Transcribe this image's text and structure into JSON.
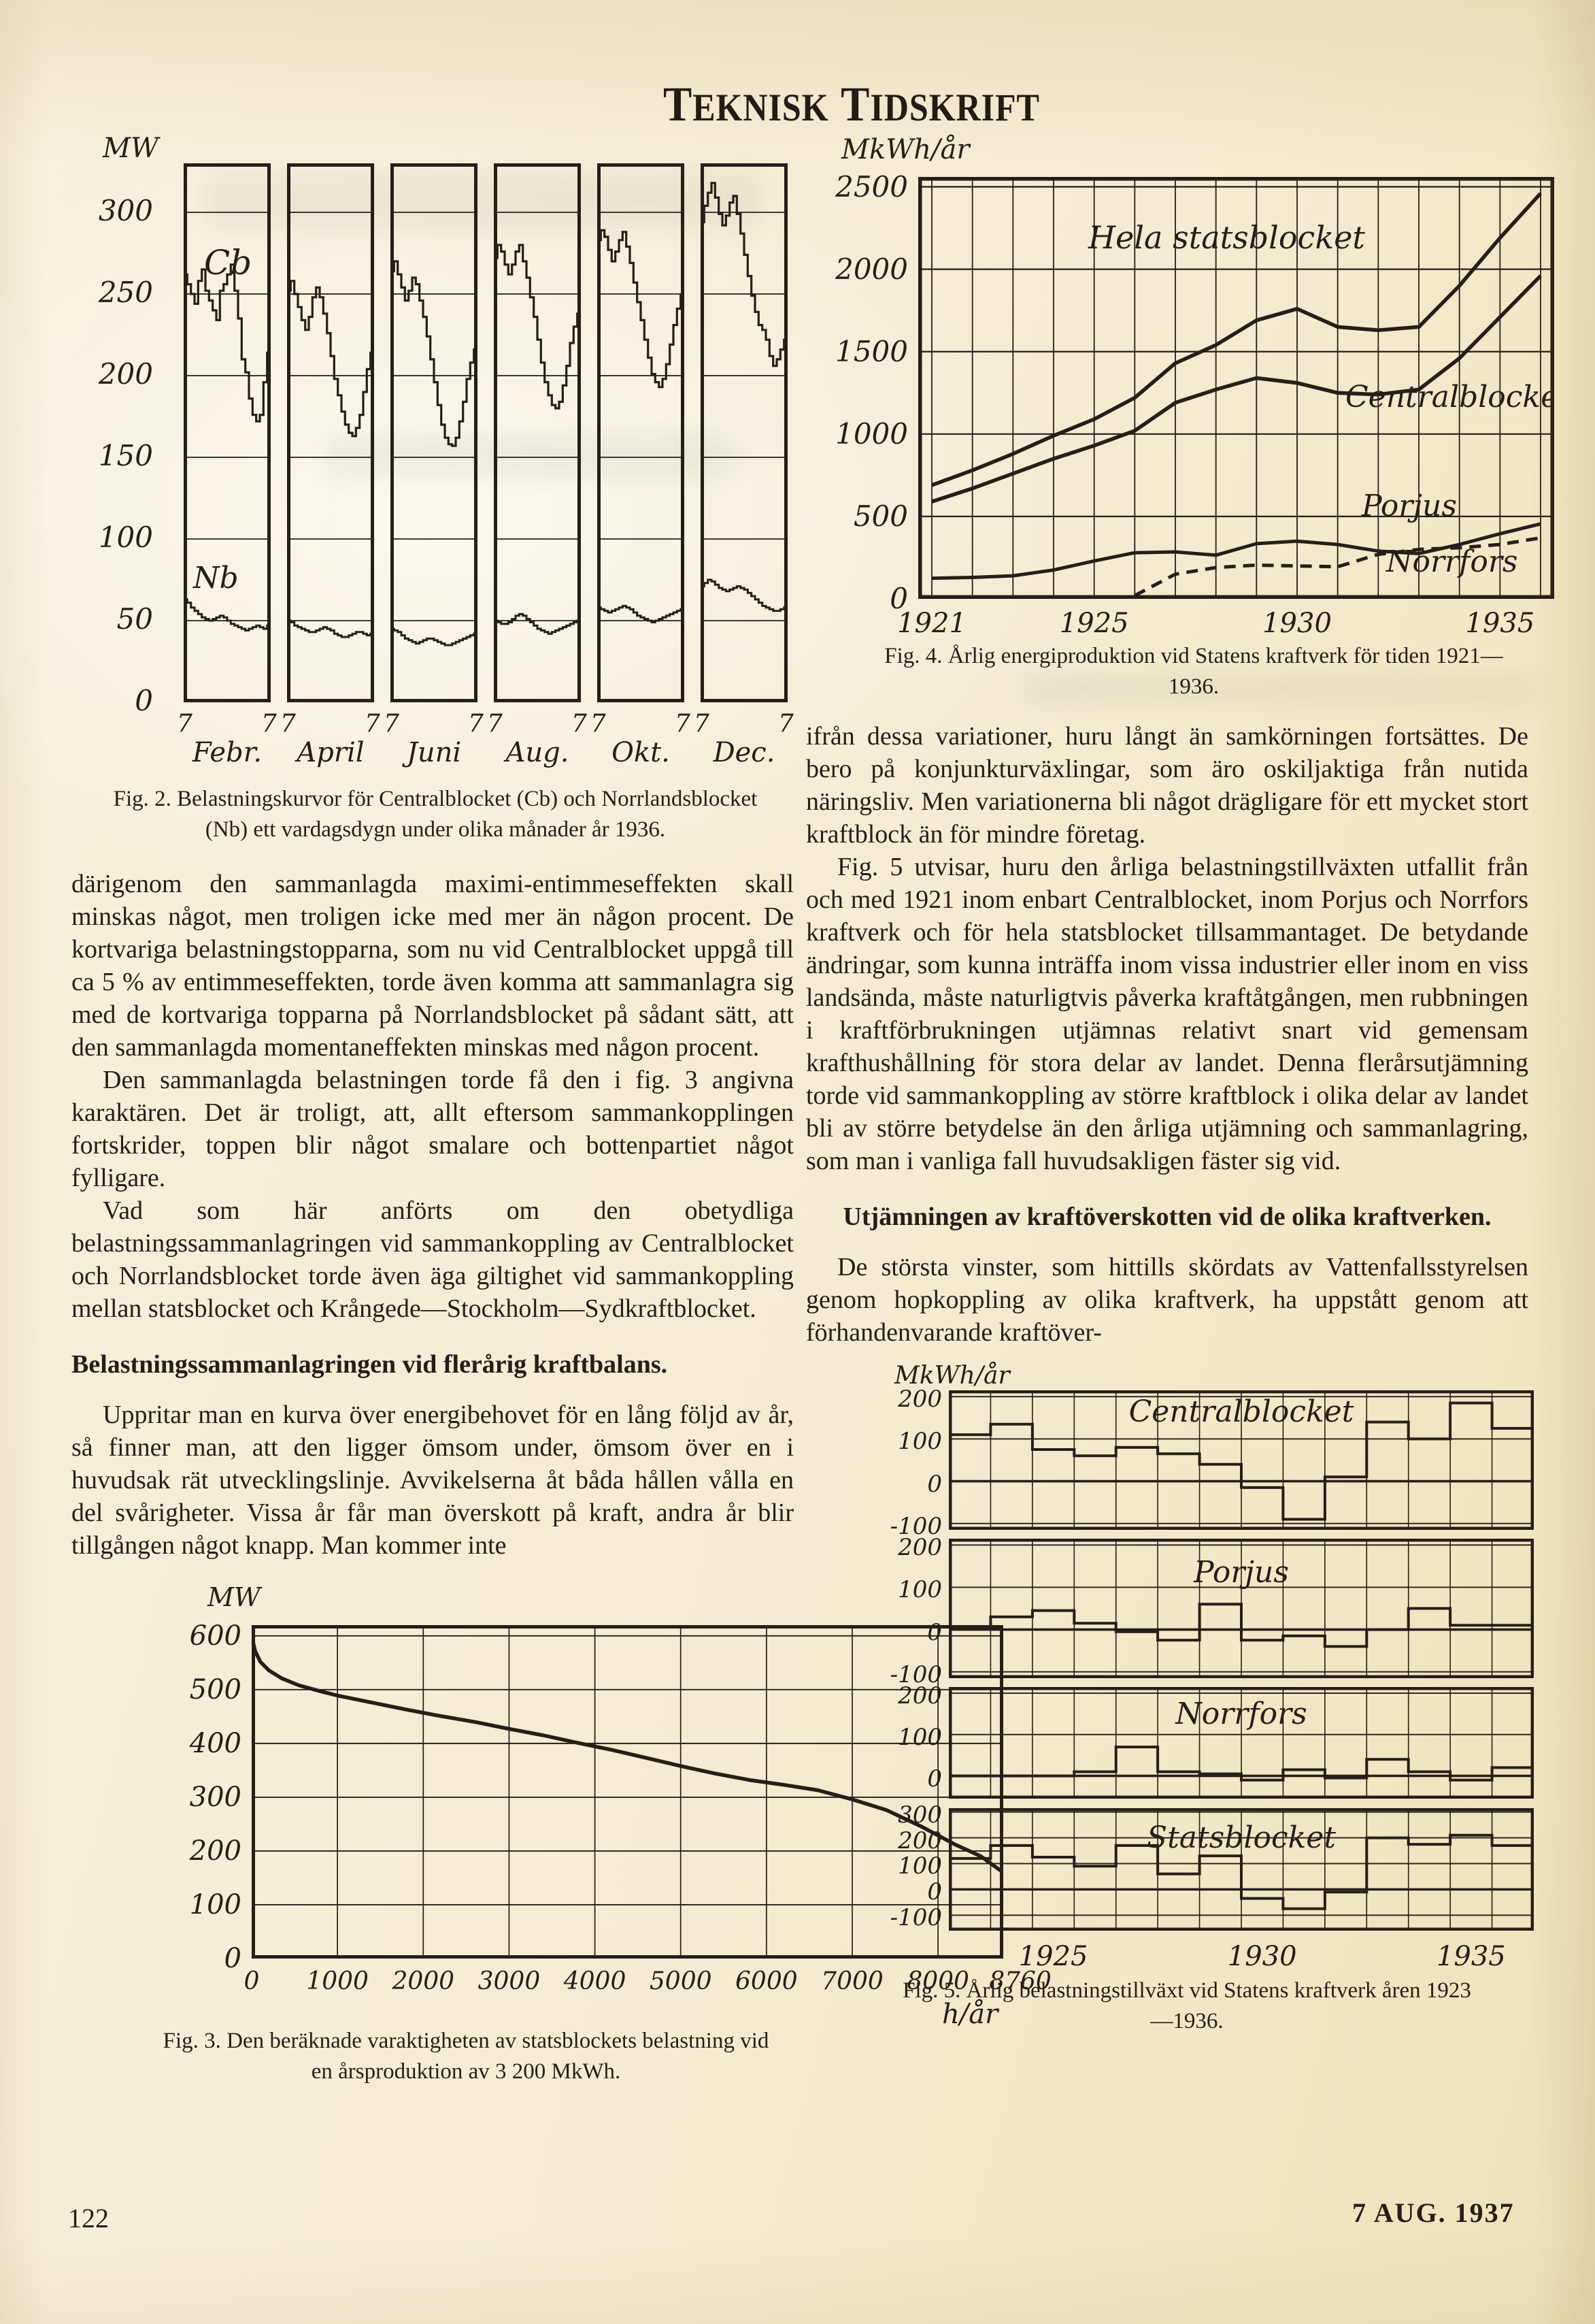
{
  "colors": {
    "paper": "#f3ecd2",
    "ink": "#241f17"
  },
  "masthead": {
    "word1": "Teknisk",
    "word2": "Tidskrift"
  },
  "footer": {
    "page_number": "122",
    "issue_date": "7 AUG. 1937"
  },
  "figures": {
    "fig2": {
      "caption": "Fig. 2. Belastningskurvor för Centralblocket (Cb) och Norrlandsblocket (Nb) ett vardagsdygn under olika månader år 1936."
    },
    "fig3": {
      "caption": "Fig. 3. Den beräknade varaktigheten av statsblockets belastning vid en årsproduktion av 3 200 MkWh."
    },
    "fig4": {
      "caption": "Fig. 4. Årlig energiproduktion vid Statens kraftverk för tiden 1921—1936."
    },
    "fig5": {
      "caption": "Fig. 5. Årlig belastningstillväxt vid Statens kraftverk åren 1923—1936."
    }
  },
  "left_column": {
    "para1": "därigenom den sammanlagda maximi-entimmeseffekten skall minskas något, men troligen icke med mer än någon procent. De kortvariga belastningstopparna, som nu vid Centralblocket uppgå till ca 5 % av entimmeseffekten, torde även komma att sammanlagra sig med de kortvariga topparna på Norrlandsblocket på sådant sätt, att den sammanlagda momentaneffekten minskas med någon procent.",
    "para2": "Den sammanlagda belastningen torde få den i fig. 3 angivna karaktären. Det är troligt, att, allt eftersom sammankopplingen fortskrider, toppen blir något smalare och bottenpartiet något fylligare.",
    "para3": "Vad som här anförts om den obetydliga belastningssammanlagringen vid sammankoppling av Centralblocket och Norrlandsblocket torde även äga giltighet vid sammankoppling mellan statsblocket och Krångede—Stockholm—Sydkraftblocket.",
    "heading": "Belastningssammanlagringen vid flerårig kraftbalans.",
    "para4": "Uppritar man en kurva över energibehovet för en lång följd av år, så finner man, att den ligger ömsom under, ömsom över en i huvudsak rät utvecklingslinje. Avvikelserna åt båda hållen vålla en del svårigheter. Vissa år får man överskott på kraft, andra år blir tillgången något knapp. Man kommer inte"
  },
  "right_column": {
    "para1": "ifrån dessa variationer, huru långt än samkörningen fortsättes. De bero på konjunkturväxlingar, som äro oskiljaktiga från nutida näringsliv. Men variationerna bli något drägligare för ett mycket stort kraftblock än för mindre företag.",
    "para2": "Fig. 5 utvisar, huru den årliga belastningstillväxten utfallit från och med 1921 inom enbart Centralblocket, inom Porjus och Norrfors kraftverk och för hela statsblocket tillsammantaget. De betydande ändringar, som kunna inträffa inom vissa industrier eller inom en viss landsända, måste naturligtvis påverka kraftåtgången, men rubbningen i kraftförbrukningen utjämnas relativt snart vid gemensam krafthushållning för stora delar av landet. Denna flerårsutjämning torde vid sammankoppling av större kraftblock i olika delar av landet bli av större betydelse än den årliga utjämning och sammanlagring, som man i vanliga fall huvudsakligen fäster sig vid.",
    "heading": "Utjämningen av kraftöverskotten vid de olika kraftverken.",
    "para3": "De största vinster, som hittills skördats av Vattenfallsstyrelsen genom hopkoppling av olika kraftverk, ha uppstått genom att förhandenvarande kraftöver-"
  },
  "chart_data": [
    {
      "id": "fig2",
      "type": "step-panels",
      "y_unit": "MW",
      "y_ticks": [
        300,
        250,
        200,
        150,
        100,
        50
      ],
      "y_max": 330,
      "x_tick_label": "7",
      "labels": {
        "cb": "Cb",
        "nb": "Nb"
      },
      "panels": [
        {
          "month": "Febr.",
          "cb": [
            262,
            256,
            250,
            244,
            258,
            265,
            252,
            246,
            240,
            234,
            252,
            256,
            262,
            268,
            252,
            235,
            210,
            202,
            186,
            176,
            172,
            176,
            196,
            214
          ],
          "nb": [
            63,
            61,
            58,
            56,
            54,
            52,
            51,
            50,
            51,
            52,
            53,
            52,
            50,
            48,
            47,
            46,
            45,
            44,
            45,
            46,
            47,
            46,
            45,
            47
          ]
        },
        {
          "month": "April",
          "cb": [
            252,
            258,
            250,
            242,
            234,
            228,
            236,
            248,
            254,
            248,
            238,
            226,
            212,
            198,
            188,
            178,
            170,
            165,
            163,
            168,
            176,
            190,
            204,
            214
          ],
          "nb": [
            50,
            49,
            47,
            46,
            45,
            44,
            43,
            43,
            44,
            45,
            46,
            45,
            44,
            42,
            41,
            40,
            40,
            41,
            42,
            43,
            43,
            42,
            41,
            42
          ]
        },
        {
          "month": "Juni",
          "cb": [
            264,
            270,
            262,
            254,
            246,
            252,
            260,
            256,
            246,
            236,
            224,
            210,
            196,
            182,
            170,
            162,
            158,
            157,
            162,
            172,
            184,
            198,
            208,
            216
          ],
          "nb": [
            45,
            44,
            43,
            41,
            39,
            38,
            37,
            36,
            37,
            38,
            39,
            39,
            38,
            37,
            36,
            35,
            35,
            36,
            37,
            38,
            39,
            40,
            41,
            42
          ]
        },
        {
          "month": "Aug.",
          "cb": [
            272,
            280,
            276,
            268,
            262,
            268,
            276,
            280,
            270,
            260,
            248,
            236,
            222,
            208,
            196,
            188,
            182,
            180,
            184,
            194,
            206,
            220,
            230,
            238
          ],
          "nb": [
            50,
            49,
            48,
            48,
            49,
            51,
            53,
            54,
            53,
            51,
            49,
            47,
            45,
            44,
            43,
            42,
            43,
            44,
            45,
            46,
            47,
            48,
            49,
            50
          ]
        },
        {
          "month": "Okt.",
          "cb": [
            283,
            289,
            285,
            277,
            270,
            276,
            283,
            288,
            279,
            269,
            257,
            245,
            234,
            222,
            211,
            201,
            196,
            193,
            198,
            207,
            219,
            231,
            241,
            249
          ],
          "nb": [
            58,
            57,
            56,
            55,
            56,
            57,
            58,
            59,
            58,
            57,
            55,
            53,
            52,
            51,
            50,
            49,
            50,
            51,
            52,
            53,
            54,
            55,
            56,
            57
          ]
        },
        {
          "month": "Dec.",
          "cb": [
            294,
            304,
            312,
            318,
            309,
            299,
            292,
            298,
            306,
            310,
            299,
            287,
            274,
            261,
            249,
            239,
            231,
            228,
            222,
            212,
            206,
            210,
            216,
            222
          ],
          "nb": [
            71,
            73,
            75,
            74,
            72,
            70,
            69,
            68,
            69,
            70,
            71,
            70,
            69,
            67,
            65,
            63,
            61,
            59,
            58,
            57,
            56,
            56,
            57,
            58
          ]
        }
      ]
    },
    {
      "id": "fig3",
      "type": "line",
      "y_unit": "MW",
      "x_unit": "h/år",
      "y_ticks": [
        600,
        500,
        400,
        300,
        200,
        100,
        0
      ],
      "y_max": 620,
      "x_ticks": [
        0,
        1000,
        2000,
        3000,
        4000,
        5000,
        6000,
        7000,
        8000,
        8760
      ],
      "x_max": 8760,
      "points": [
        [
          0,
          600
        ],
        [
          40,
          572
        ],
        [
          100,
          552
        ],
        [
          200,
          536
        ],
        [
          350,
          521
        ],
        [
          550,
          508
        ],
        [
          800,
          497
        ],
        [
          1000,
          489
        ],
        [
          1400,
          476
        ],
        [
          1800,
          463
        ],
        [
          2200,
          451
        ],
        [
          2600,
          440
        ],
        [
          3000,
          427
        ],
        [
          3400,
          415
        ],
        [
          3800,
          401
        ],
        [
          4200,
          388
        ],
        [
          4600,
          373
        ],
        [
          5000,
          358
        ],
        [
          5400,
          344
        ],
        [
          5800,
          332
        ],
        [
          6200,
          323
        ],
        [
          6600,
          313
        ],
        [
          7000,
          296
        ],
        [
          7400,
          276
        ],
        [
          7800,
          246
        ],
        [
          8200,
          212
        ],
        [
          8500,
          190
        ],
        [
          8760,
          160
        ]
      ]
    },
    {
      "id": "fig4",
      "type": "multi-line",
      "y_unit": "MkWh/år",
      "y_ticks": [
        2500,
        2000,
        1500,
        1000,
        500,
        0
      ],
      "y_max": 2560,
      "x_start": 1921,
      "x_end": 1936,
      "x_ticks": [
        1921,
        1925,
        1930,
        1935
      ],
      "series": [
        {
          "name": "Hela statsblocket",
          "dash": false,
          "values": [
            690,
            780,
            880,
            990,
            1090,
            1220,
            1430,
            1540,
            1690,
            1760,
            1650,
            1630,
            1650,
            1900,
            2190,
            2460
          ]
        },
        {
          "name": "Centralblocket",
          "dash": false,
          "values": [
            590,
            670,
            760,
            850,
            930,
            1020,
            1190,
            1270,
            1340,
            1310,
            1250,
            1240,
            1270,
            1460,
            1710,
            1960
          ]
        },
        {
          "name": "Porjus",
          "dash": false,
          "values": [
            125,
            130,
            140,
            175,
            230,
            280,
            285,
            265,
            335,
            350,
            330,
            290,
            275,
            330,
            395,
            455
          ]
        },
        {
          "name": "Norrfors",
          "dash": true,
          "values": [
            null,
            null,
            null,
            null,
            null,
            20,
            150,
            190,
            205,
            200,
            195,
            270,
            300,
            310,
            330,
            370
          ]
        }
      ]
    },
    {
      "id": "fig5",
      "type": "step-bars",
      "y_unit": "MkWh/år",
      "x_start": 1923,
      "x_ticks": [
        1925,
        1930,
        1935
      ],
      "panels": [
        {
          "name": "Centralblocket",
          "y_ticks": [
            200,
            100,
            0,
            -100
          ],
          "domain": [
            -115,
            215
          ],
          "values": [
            110,
            135,
            75,
            60,
            80,
            65,
            40,
            -15,
            -90,
            10,
            140,
            100,
            185,
            125
          ]
        },
        {
          "name": "Porjus",
          "y_ticks": [
            200,
            100,
            0,
            -100
          ],
          "domain": [
            -115,
            215
          ],
          "values": [
            5,
            30,
            45,
            15,
            -5,
            -25,
            60,
            -25,
            -15,
            -40,
            0,
            50,
            10,
            10
          ]
        },
        {
          "name": "Norrfors",
          "y_ticks": [
            200,
            100,
            0
          ],
          "domain": [
            -55,
            215
          ],
          "values": [
            0,
            0,
            0,
            10,
            70,
            10,
            5,
            -10,
            15,
            -5,
            40,
            10,
            -10,
            20
          ]
        },
        {
          "name": "Statsblocket",
          "y_ticks": [
            300,
            200,
            100,
            0,
            -100
          ],
          "domain": [
            -160,
            315
          ],
          "values": [
            120,
            170,
            125,
            90,
            170,
            60,
            130,
            -35,
            -75,
            -10,
            200,
            175,
            210,
            170
          ]
        }
      ]
    }
  ]
}
